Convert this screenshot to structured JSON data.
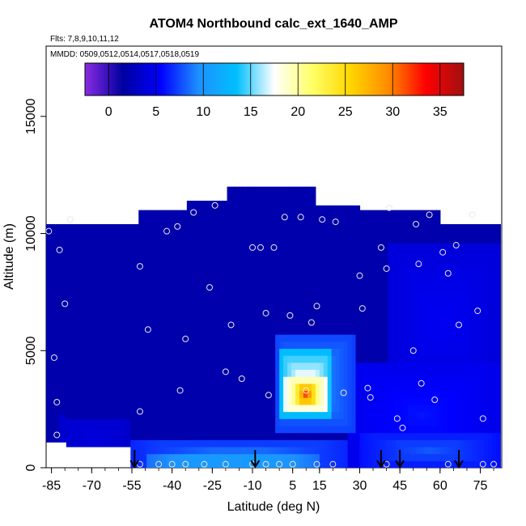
{
  "chart_data": {
    "type": "heatmap",
    "title": "ATOM4 Northbound calc_ext_1640_AMP",
    "subtitle_flights": "Flts: 7,8,9,10,11,12",
    "subtitle_dates": "MMDD: 0509,0512,0514,0517,0518,0519",
    "xlabel": "Latitude (deg N)",
    "ylabel": "Altitude (m)",
    "xlim": [
      -87,
      83
    ],
    "ylim": [
      0,
      18000
    ],
    "x_ticks": [
      -85,
      -70,
      -55,
      -40,
      -25,
      -10,
      5,
      15,
      30,
      45,
      60,
      75
    ],
    "x_tick_labels": [
      "-85",
      "-70",
      "-55",
      "-40",
      "-25",
      "-10",
      "5",
      "15",
      "30",
      "45",
      "60",
      "75"
    ],
    "y_ticks": [
      0,
      5000,
      10000,
      15000
    ],
    "y_tick_labels": [
      "0",
      "5000",
      "10000",
      "15000"
    ],
    "colorbar": {
      "ticks": [
        0,
        5,
        10,
        15,
        20,
        25,
        30,
        35
      ],
      "tick_labels": [
        "0",
        "5",
        "10",
        "15",
        "20",
        "25",
        "30",
        "35"
      ],
      "range": [
        -2.5,
        37.5
      ],
      "stops": [
        "#8a2be2",
        "#0000a0",
        "#0000ff",
        "#1e90ff",
        "#00bfff",
        "#ffffff",
        "#ffff66",
        "#ffd700",
        "#ff8c00",
        "#ff0000",
        "#a01010"
      ]
    },
    "background_value": 2,
    "regions": [
      {
        "name": "south-surface-blue",
        "x": [
          -83,
          -55
        ],
        "y": [
          500,
          2200
        ],
        "value": 4
      },
      {
        "name": "tropical-surface-band",
        "x": [
          -55,
          25
        ],
        "y": [
          0,
          1200
        ],
        "value": 9
      },
      {
        "name": "tropical-surface-core",
        "x": [
          -50,
          15
        ],
        "y": [
          0,
          600
        ],
        "value": 12
      },
      {
        "name": "plume-outer",
        "x": [
          -2,
          28
        ],
        "y": [
          1500,
          5800
        ],
        "value": 10
      },
      {
        "name": "plume-white",
        "x": [
          0,
          20
        ],
        "y": [
          2200,
          5000
        ],
        "value": 19
      },
      {
        "name": "plume-yellow",
        "x": [
          2,
          18
        ],
        "y": [
          2400,
          4000
        ],
        "value": 25
      },
      {
        "name": "plume-core",
        "x": [
          6,
          14
        ],
        "y": [
          2600,
          3700
        ],
        "value": 32
      },
      {
        "name": "northern-blue-low",
        "x": [
          25,
          82
        ],
        "y": [
          0,
          4500
        ],
        "value": 6
      },
      {
        "name": "northern-blue-mid",
        "x": [
          40,
          82
        ],
        "y": [
          3000,
          9500
        ],
        "value": 5
      },
      {
        "name": "northern-blue-surface",
        "x": [
          30,
          82
        ],
        "y": [
          0,
          1500
        ],
        "value": 8
      }
    ],
    "sample_points": [
      [
        -86,
        10100
      ],
      [
        -82,
        9300
      ],
      [
        -80,
        7000
      ],
      [
        -78,
        10600
      ],
      [
        -84,
        4700
      ],
      [
        -83,
        2800
      ],
      [
        -83,
        1400
      ],
      [
        -52,
        8600
      ],
      [
        -49,
        5900
      ],
      [
        -52,
        2400
      ],
      [
        -42,
        10100
      ],
      [
        -38,
        10300
      ],
      [
        -35,
        5500
      ],
      [
        -37,
        3300
      ],
      [
        -32,
        10900
      ],
      [
        -26,
        7700
      ],
      [
        -24,
        11200
      ],
      [
        -20,
        4100
      ],
      [
        -18,
        6100
      ],
      [
        -14,
        3800
      ],
      [
        -10,
        9400
      ],
      [
        -7,
        9400
      ],
      [
        -5,
        6600
      ],
      [
        -4,
        3100
      ],
      [
        -2,
        9400
      ],
      [
        2,
        10700
      ],
      [
        4,
        6500
      ],
      [
        8,
        10700
      ],
      [
        10,
        3300
      ],
      [
        12,
        6200
      ],
      [
        14,
        6900
      ],
      [
        16,
        10600
      ],
      [
        21,
        10500
      ],
      [
        24,
        3200
      ],
      [
        30,
        8200
      ],
      [
        31,
        6800
      ],
      [
        33,
        3400
      ],
      [
        34,
        3000
      ],
      [
        38,
        9400
      ],
      [
        40,
        8500
      ],
      [
        41,
        11100
      ],
      [
        44,
        2100
      ],
      [
        46,
        1700
      ],
      [
        50,
        5000
      ],
      [
        51,
        10400
      ],
      [
        52,
        8700
      ],
      [
        53,
        3600
      ],
      [
        56,
        10800
      ],
      [
        58,
        2900
      ],
      [
        61,
        9200
      ],
      [
        63,
        8300
      ],
      [
        66,
        9500
      ],
      [
        67,
        6100
      ],
      [
        72,
        10800
      ],
      [
        74,
        6700
      ],
      [
        76,
        2100
      ],
      [
        -52,
        150
      ],
      [
        -45,
        150
      ],
      [
        -40,
        150
      ],
      [
        -35,
        150
      ],
      [
        -28,
        150
      ],
      [
        -20,
        150
      ],
      [
        -10,
        150
      ],
      [
        -5,
        150
      ],
      [
        0,
        150
      ],
      [
        5,
        150
      ],
      [
        14,
        150
      ],
      [
        20,
        150
      ],
      [
        40,
        150
      ],
      [
        63,
        150
      ],
      [
        76,
        150
      ],
      [
        80,
        150
      ]
    ],
    "arrows_lat": [
      -54,
      -9,
      38,
      45,
      67
    ]
  }
}
